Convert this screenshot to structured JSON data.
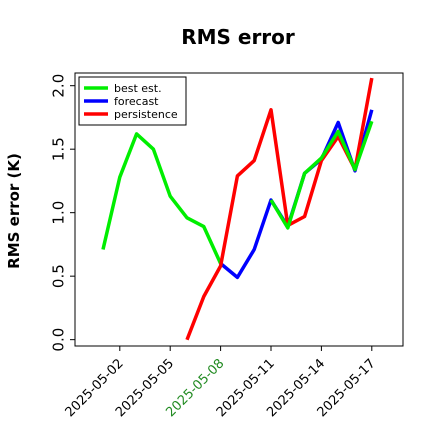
{
  "chart_data": {
    "type": "line",
    "title": "RMS error",
    "xlabel": "",
    "ylabel": "RMS error (K)",
    "ylim": [
      -0.05,
      2.1
    ],
    "yticks": [
      "0.0",
      "0.5",
      "1.0",
      "1.5",
      "2.0"
    ],
    "xticks": [
      {
        "label": "2025-05-02",
        "color": "#000000"
      },
      {
        "label": "2025-05-05",
        "color": "#000000"
      },
      {
        "label": "2025-05-08",
        "color": "#228B22"
      },
      {
        "label": "2025-05-11",
        "color": "#000000"
      },
      {
        "label": "2025-05-14",
        "color": "#000000"
      },
      {
        "label": "2025-05-17",
        "color": "#000000"
      }
    ],
    "legend_position": "top-left",
    "x": [
      "2025-05-01",
      "2025-05-02",
      "2025-05-03",
      "2025-05-04",
      "2025-05-05",
      "2025-05-06",
      "2025-05-07",
      "2025-05-08",
      "2025-05-09",
      "2025-05-10",
      "2025-05-11",
      "2025-05-12",
      "2025-05-13",
      "2025-05-14",
      "2025-05-15",
      "2025-05-16",
      "2025-05-17"
    ],
    "series": [
      {
        "name": "best est.",
        "color": "#00ee00",
        "values": [
          0.71,
          1.28,
          1.62,
          1.5,
          1.13,
          0.96,
          0.89,
          0.6,
          null,
          null,
          null,
          null,
          null,
          null,
          null,
          null,
          null
        ]
      },
      {
        "name": "forecast",
        "color": "#0000ff",
        "values": [
          null,
          null,
          null,
          null,
          null,
          null,
          null,
          0.6,
          0.49,
          0.71,
          1.1,
          0.89,
          1.31,
          1.42,
          1.71,
          1.33,
          1.81
        ]
      },
      {
        "name": "persistence",
        "color": "#ff0000",
        "values": [
          null,
          null,
          null,
          null,
          null,
          0.0,
          0.34,
          0.58,
          1.29,
          1.41,
          1.81,
          0.9,
          0.97,
          1.41,
          1.6,
          1.34,
          2.06
        ]
      },
      {
        "name": "",
        "color": "#00ee00",
        "values": [
          null,
          null,
          null,
          null,
          null,
          null,
          null,
          null,
          null,
          null,
          1.1,
          0.88,
          1.31,
          1.43,
          1.64,
          1.34,
          1.72
        ]
      }
    ]
  }
}
